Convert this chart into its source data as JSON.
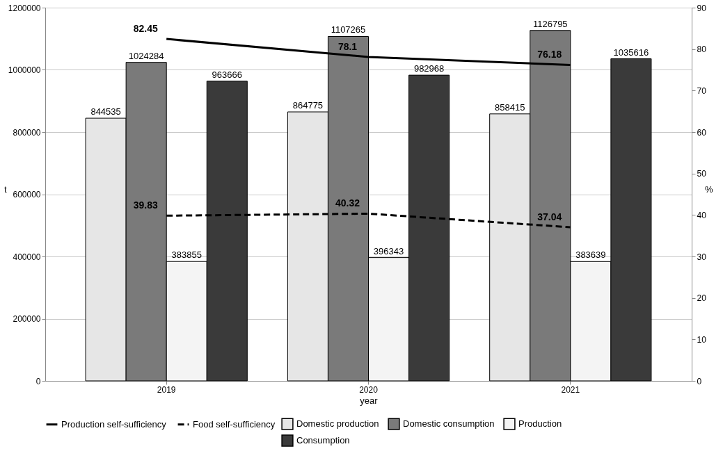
{
  "chart_data": {
    "type": "bar",
    "categories": [
      "2019",
      "2020",
      "2021"
    ],
    "xlabel": "year",
    "ylabel": "t",
    "y2label": "%",
    "ylim": [
      0,
      1200000
    ],
    "yticks": [
      0,
      200000,
      400000,
      600000,
      800000,
      1000000,
      1200000
    ],
    "y2lim": [
      0,
      90
    ],
    "y2ticks": [
      0,
      10,
      20,
      30,
      40,
      50,
      60,
      70,
      80,
      90
    ],
    "grid": "y",
    "legend": "bottom",
    "data_labels": true,
    "marker": "none",
    "series": [
      {
        "name": "Domestic production",
        "color": "#e6e6e6",
        "values": [
          844535,
          864775,
          858415
        ]
      },
      {
        "name": "Domestic consumption",
        "color": "#7a7a7a",
        "values": [
          1024284,
          1107265,
          1126795
        ]
      },
      {
        "name": "Production",
        "color": "#f4f4f4",
        "values": [
          383855,
          396343,
          383639
        ]
      },
      {
        "name": "Consumption",
        "color": "#3a3a3a",
        "values": [
          963666,
          982968,
          1035616
        ]
      },
      {
        "name": "Production self-sufficiency",
        "type": "line",
        "axis": "y2",
        "color": "#000000",
        "line_style": "solid",
        "values": [
          82.45,
          78.1,
          76.18
        ]
      },
      {
        "name": "Food self-sufficiency",
        "type": "line",
        "axis": "y2",
        "color": "#000000",
        "line_style": "dashed",
        "values": [
          39.83,
          40.32,
          37.04
        ]
      }
    ]
  }
}
